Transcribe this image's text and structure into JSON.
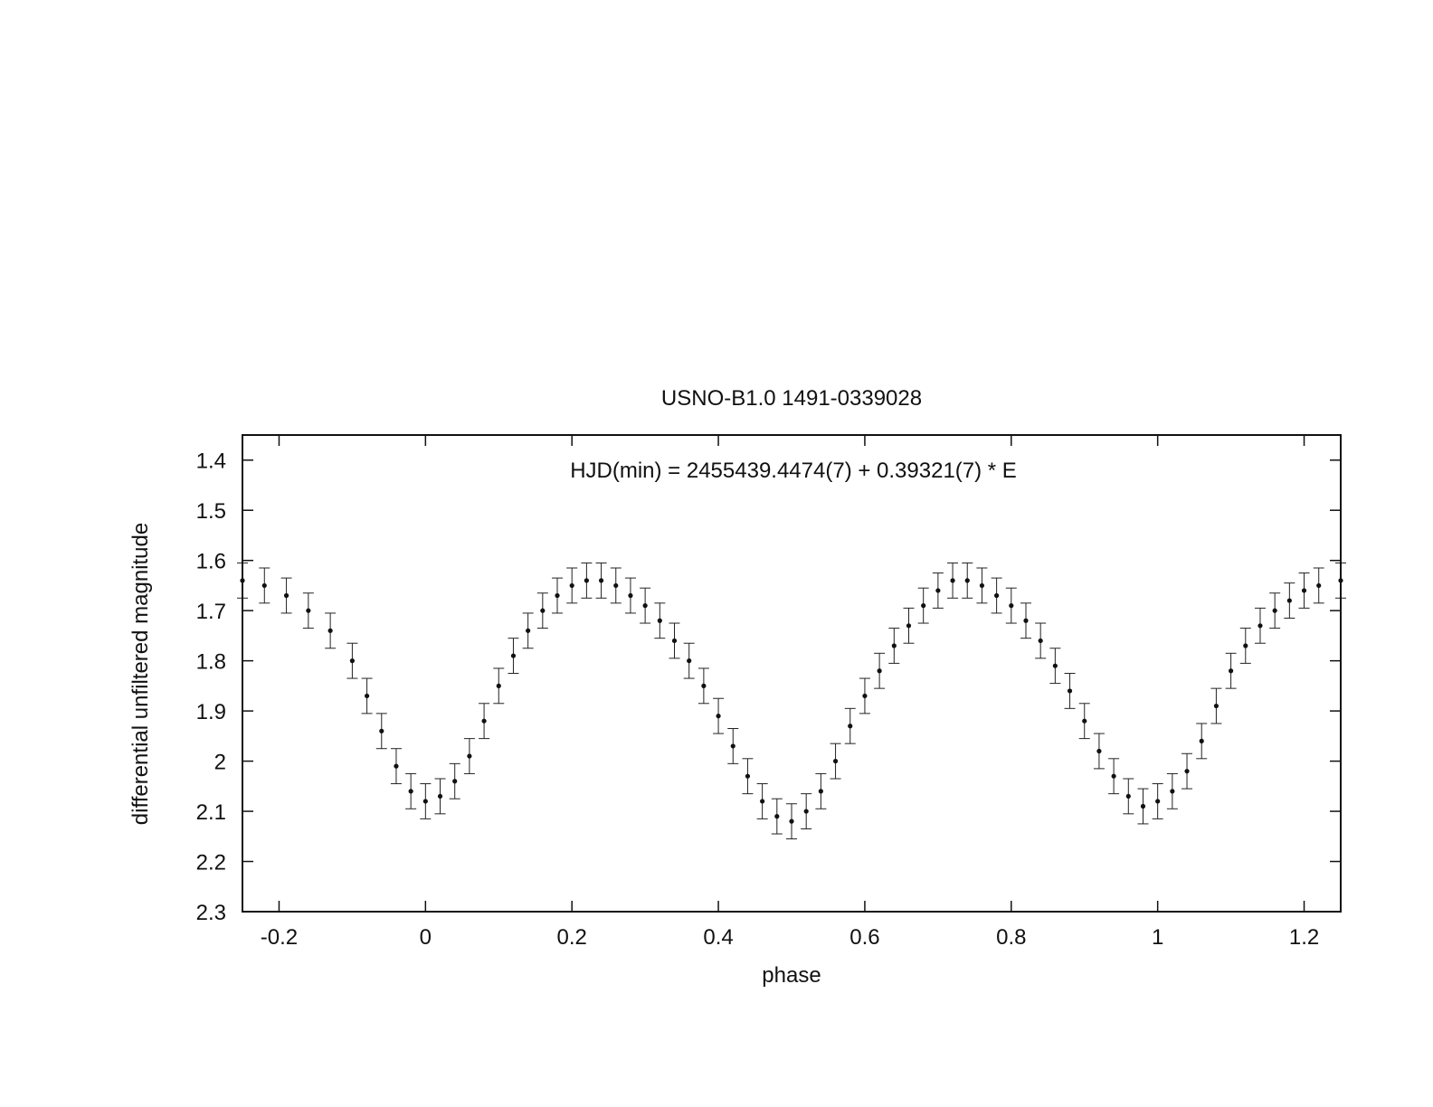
{
  "chart_data": {
    "type": "scatter",
    "title": "USNO-B1.0 1491-0339028",
    "annotation": "HJD(min) = 2455439.4474(7) + 0.39321(7) * E",
    "xlabel": "phase",
    "ylabel": "differential unfiltered magnitude",
    "xlim": [
      -0.25,
      1.25
    ],
    "ylim": [
      2.3,
      1.35
    ],
    "y_inverted": true,
    "grid": false,
    "legend": "none",
    "error_bars": true,
    "x_ticks": [
      {
        "value": -0.2,
        "label": "-0.2"
      },
      {
        "value": 0,
        "label": "0"
      },
      {
        "value": 0.2,
        "label": "0.2"
      },
      {
        "value": 0.4,
        "label": "0.4"
      },
      {
        "value": 0.6,
        "label": "0.6"
      },
      {
        "value": 0.8,
        "label": "0.8"
      },
      {
        "value": 1,
        "label": "1"
      },
      {
        "value": 1.2,
        "label": "1.2"
      }
    ],
    "y_ticks": [
      {
        "value": 1.4,
        "label": "1.4"
      },
      {
        "value": 1.5,
        "label": "1.5"
      },
      {
        "value": 1.6,
        "label": "1.6"
      },
      {
        "value": 1.7,
        "label": "1.7"
      },
      {
        "value": 1.8,
        "label": "1.8"
      },
      {
        "value": 1.9,
        "label": "1.9"
      },
      {
        "value": 2,
        "label": "2"
      },
      {
        "value": 2.1,
        "label": "2.1"
      },
      {
        "value": 2.2,
        "label": "2.2"
      },
      {
        "value": 2.3,
        "label": "2.3"
      }
    ],
    "series": [
      {
        "x": [
          -0.25,
          -0.22,
          -0.19,
          -0.16,
          -0.13,
          -0.1,
          -0.08,
          -0.06,
          -0.04,
          -0.02,
          0,
          0.02,
          0.04,
          0.06,
          0.08,
          0.1,
          0.12,
          0.14,
          0.16,
          0.18,
          0.2,
          0.22,
          0.24,
          0.26,
          0.28,
          0.3,
          0.32,
          0.34,
          0.36,
          0.38,
          0.4,
          0.42,
          0.44,
          0.46,
          0.48,
          0.5,
          0.52,
          0.54,
          0.56,
          0.58,
          0.6,
          0.62,
          0.64,
          0.66,
          0.68,
          0.7,
          0.72,
          0.74,
          0.76,
          0.78,
          0.8,
          0.82,
          0.84,
          0.86,
          0.88,
          0.9,
          0.92,
          0.94,
          0.96,
          0.98,
          1,
          1.02,
          1.04,
          1.06,
          1.08,
          1.1,
          1.12,
          1.14,
          1.16,
          1.18,
          1.2,
          1.22,
          1.25
        ],
        "y": [
          1.64,
          1.65,
          1.67,
          1.7,
          1.74,
          1.8,
          1.87,
          1.94,
          2.01,
          2.06,
          2.08,
          2.07,
          2.04,
          1.99,
          1.92,
          1.85,
          1.79,
          1.74,
          1.7,
          1.67,
          1.65,
          1.64,
          1.64,
          1.65,
          1.67,
          1.69,
          1.72,
          1.76,
          1.8,
          1.85,
          1.91,
          1.97,
          2.03,
          2.08,
          2.11,
          2.12,
          2.1,
          2.06,
          2.0,
          1.93,
          1.87,
          1.82,
          1.77,
          1.73,
          1.69,
          1.66,
          1.64,
          1.64,
          1.65,
          1.67,
          1.69,
          1.72,
          1.76,
          1.81,
          1.86,
          1.92,
          1.98,
          2.03,
          2.07,
          2.09,
          2.08,
          2.06,
          2.02,
          1.96,
          1.89,
          1.82,
          1.77,
          1.73,
          1.7,
          1.68,
          1.66,
          1.65,
          1.64
        ],
        "yerr": 0.035
      }
    ]
  }
}
